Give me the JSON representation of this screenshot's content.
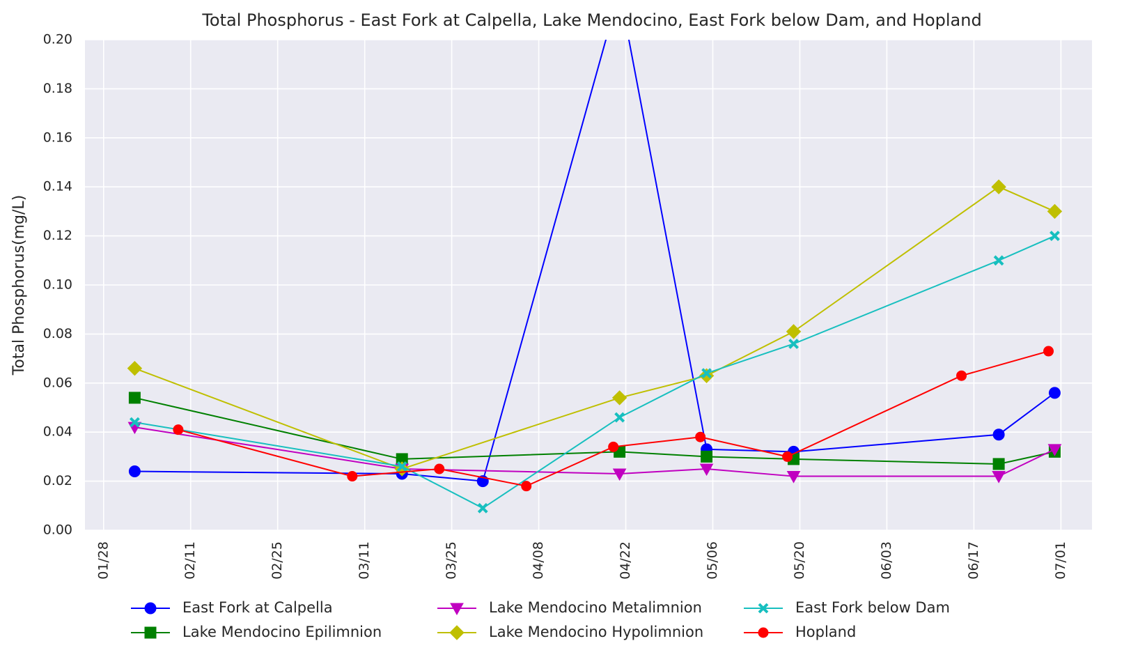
{
  "chart_data": {
    "type": "line",
    "title": "Total Phosphorus - East Fork at Calpella, Lake Mendocino, East Fork below Dam, and Hopland",
    "ylabel": "Total Phosphorus(mg/L)",
    "xlim": [
      "01/25",
      "07/06"
    ],
    "xticks": [
      "01/28",
      "02/11",
      "02/25",
      "03/11",
      "03/25",
      "04/08",
      "04/22",
      "05/06",
      "05/20",
      "06/03",
      "06/17",
      "07/01"
    ],
    "ylim": [
      0,
      0.2
    ],
    "yticks": [
      {
        "value": 0,
        "label": "0.00"
      },
      {
        "value": 0.02,
        "label": "0.02"
      },
      {
        "value": 0.04,
        "label": "0.04"
      },
      {
        "value": 0.06,
        "label": "0.06"
      },
      {
        "value": 0.08,
        "label": "0.08"
      },
      {
        "value": 0.1,
        "label": "0.10"
      },
      {
        "value": 0.12,
        "label": "0.12"
      },
      {
        "value": 0.14,
        "label": "0.14"
      },
      {
        "value": 0.16,
        "label": "0.16"
      },
      {
        "value": 0.18,
        "label": "0.18"
      },
      {
        "value": 0.2,
        "label": "0.20"
      }
    ],
    "grid": true,
    "legend": "bottom",
    "series": [
      {
        "name": "East Fork at Calpella",
        "color": "#0000ff",
        "marker": "circle",
        "x": [
          "02/02",
          "03/17",
          "03/30",
          "04/21",
          "05/05",
          "05/19",
          "06/21",
          "06/30"
        ],
        "values": [
          0.024,
          0.023,
          0.02,
          0.22,
          0.033,
          0.032,
          0.039,
          0.056
        ]
      },
      {
        "name": "Lake Mendocino Epilimnion",
        "color": "#008000",
        "marker": "square",
        "x": [
          "02/02",
          "03/17",
          "04/21",
          "05/05",
          "05/19",
          "06/21",
          "06/30"
        ],
        "values": [
          0.054,
          0.029,
          0.032,
          0.03,
          0.029,
          0.027,
          0.032
        ]
      },
      {
        "name": "Lake Mendocino Metalimnion",
        "color": "#c000c0",
        "marker": "triangle-down",
        "x": [
          "02/02",
          "03/17",
          "04/21",
          "05/05",
          "05/19",
          "06/21",
          "06/30"
        ],
        "values": [
          0.042,
          0.025,
          0.023,
          0.025,
          0.022,
          0.022,
          0.033
        ]
      },
      {
        "name": "Lake Mendocino Hypolimnion",
        "color": "#bfbf00",
        "marker": "diamond",
        "x": [
          "02/02",
          "03/17",
          "04/21",
          "05/05",
          "05/19",
          "06/21",
          "06/30"
        ],
        "values": [
          0.066,
          0.025,
          0.054,
          0.063,
          0.081,
          0.14,
          0.13
        ]
      },
      {
        "name": "East Fork below Dam",
        "color": "#17bfbf",
        "marker": "x",
        "x": [
          "02/02",
          "03/17",
          "03/30",
          "04/21",
          "05/05",
          "05/19",
          "06/21",
          "06/30"
        ],
        "values": [
          0.044,
          0.026,
          0.009,
          0.046,
          0.064,
          0.076,
          0.11,
          0.12
        ]
      },
      {
        "name": "Hopland",
        "color": "#ff0000",
        "marker": "circle-small",
        "x": [
          "02/09",
          "03/09",
          "03/23",
          "04/06",
          "04/20",
          "05/04",
          "05/18",
          "06/15",
          "06/29"
        ],
        "values": [
          0.041,
          0.022,
          0.025,
          0.018,
          0.034,
          0.038,
          0.03,
          0.063,
          0.073
        ]
      }
    ]
  }
}
